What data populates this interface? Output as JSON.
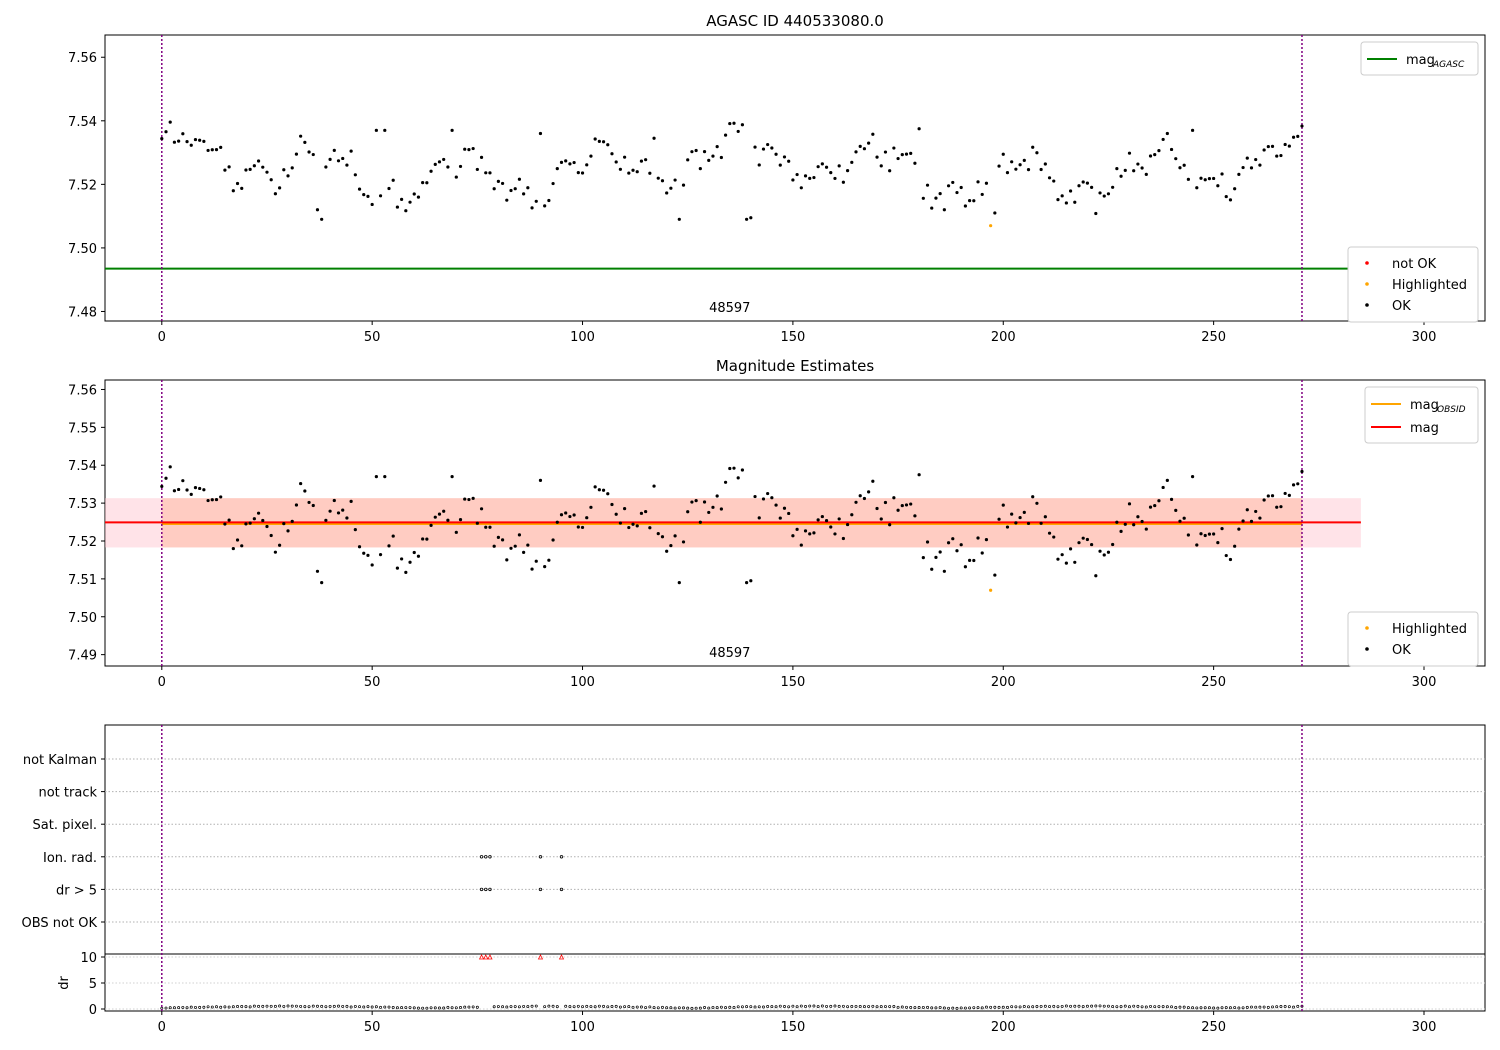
{
  "chart_data": [
    {
      "type": "scatter",
      "title": "AGASC ID 440533080.0",
      "xlim": [
        -13.5,
        314.5
      ],
      "ylim": [
        7.477,
        7.567
      ],
      "xticks": [
        0,
        50,
        100,
        150,
        200,
        250,
        300
      ],
      "yticks": [
        7.48,
        7.5,
        7.52,
        7.54,
        7.56
      ],
      "ytick_labels": [
        "7.48",
        "7.50",
        "7.52",
        "7.54",
        "7.56"
      ],
      "obsid_label": "48597",
      "obsid_label_x": 135,
      "obsid_boundaries": [
        0,
        271
      ],
      "mag_agasc": 7.4935,
      "mag_agasc_xrange": [
        -13.5,
        285
      ],
      "legend_lines": [
        {
          "label": "mag",
          "sub": "AGASC",
          "color": "#008000"
        }
      ],
      "legend_points": [
        {
          "label": "not OK",
          "color": "#ff0000"
        },
        {
          "label": "Highlighted",
          "color": "#ffa500"
        },
        {
          "label": "OK",
          "color": "#000000"
        }
      ],
      "highlighted": [
        {
          "x": 197,
          "y": 7.507
        }
      ]
    },
    {
      "type": "scatter",
      "title": "Magnitude Estimates",
      "xlim": [
        -13.5,
        314.5
      ],
      "ylim": [
        7.487,
        7.5625
      ],
      "xticks": [
        0,
        50,
        100,
        150,
        200,
        250,
        300
      ],
      "yticks": [
        7.49,
        7.5,
        7.51,
        7.52,
        7.53,
        7.54,
        7.55,
        7.56
      ],
      "ytick_labels": [
        "7.49",
        "7.50",
        "7.51",
        "7.52",
        "7.53",
        "7.54",
        "7.55",
        "7.56"
      ],
      "obsid_label": "48597",
      "obsid_label_x": 135,
      "obsid_boundaries": [
        0,
        271
      ],
      "mag": 7.5249,
      "mag_band": [
        7.5183,
        7.5313
      ],
      "mag_xrange": [
        -13.5,
        285
      ],
      "mag_obsid": 7.5245,
      "mag_obsid_band": [
        7.5183,
        7.5313
      ],
      "mag_obsid_xrange": [
        0,
        271
      ],
      "legend_lines": [
        {
          "label": "mag",
          "sub": "OBSID",
          "color": "#ffa500"
        },
        {
          "label": "mag",
          "sub": "",
          "color": "#ff0000"
        }
      ],
      "legend_points": [
        {
          "label": "Highlighted",
          "color": "#ffa500"
        },
        {
          "label": "OK",
          "color": "#000000"
        }
      ],
      "highlighted": [
        {
          "x": 197,
          "y": 7.507
        }
      ]
    },
    {
      "type": "scatter",
      "title": "",
      "xlim": [
        -13.5,
        314.5
      ],
      "xticks": [
        0,
        50,
        100,
        150,
        200,
        250,
        300
      ],
      "flag_categories": [
        "not Kalman",
        "not track",
        "Sat. pixel.",
        "Ion. rad.",
        "dr > 5",
        "OBS not OK"
      ],
      "flags": {
        "Ion. rad.": [
          76,
          77,
          78,
          90,
          95
        ],
        "dr > 5": [
          76,
          77,
          78,
          90,
          95
        ]
      },
      "dr_ylabel": "dr",
      "dr_yticks": [
        0,
        5,
        10
      ],
      "dr_ylim": [
        -0.5,
        10.5
      ],
      "dr_outliers": [
        76,
        77,
        78,
        90,
        95
      ],
      "dr_outlier_value": 10,
      "obsid_boundaries": [
        0,
        271
      ]
    }
  ],
  "colors": {
    "ok": "#000000",
    "highlighted": "#ffa500",
    "not_ok": "#ff0000",
    "boundary": "#800080",
    "mag_agasc": "#008000",
    "mag": "#ff0000",
    "mag_obsid": "#ffa500",
    "band_mag": "#ffc0cb",
    "band_obsid": "#ffa07a"
  }
}
